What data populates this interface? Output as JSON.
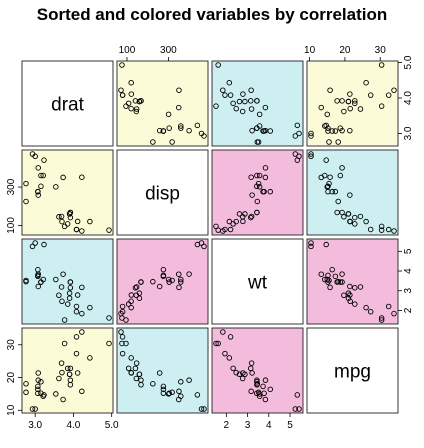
{
  "chart_data": {
    "type": "scatter",
    "title": "Sorted and colored variables by correlation",
    "variables": [
      "drat",
      "disp",
      "wt",
      "mpg"
    ],
    "colors": {
      "high_positive": "#f3bcdd",
      "moderate": "#cdeff1",
      "weak": "#fbfbd8",
      "diagonal": "#ffffff",
      "border": "#222222"
    },
    "panel_colors": [
      [
        "diagonal",
        "weak",
        "moderate",
        "weak"
      ],
      [
        "weak",
        "diagonal",
        "high_positive",
        "moderate"
      ],
      [
        "moderate",
        "high_positive",
        "diagonal",
        "high_positive"
      ],
      [
        "weak",
        "moderate",
        "high_positive",
        "diagonal"
      ]
    ],
    "ranges": {
      "drat": [
        2.76,
        4.93
      ],
      "disp": [
        71.1,
        472
      ],
      "wt": [
        1.513,
        5.424
      ],
      "mpg": [
        10.4,
        33.9
      ]
    },
    "ticks": {
      "drat": [
        3.0,
        4.0,
        5.0
      ],
      "disp": [
        100,
        300
      ],
      "wt": [
        2,
        3,
        4,
        5
      ],
      "mpg": [
        10,
        20,
        30
      ]
    },
    "tick_labels": {
      "drat": [
        "3.0",
        "4.0",
        "5.0"
      ],
      "disp": [
        "100",
        "300"
      ],
      "wt": [
        "2",
        "3",
        "4",
        "5"
      ],
      "mpg": [
        "10",
        "20",
        "30"
      ]
    },
    "axes_layout": {
      "top": [
        "disp",
        "mpg"
      ],
      "right": [
        "drat",
        "wt"
      ],
      "bottom": [
        "drat",
        "wt"
      ],
      "left": [
        "disp",
        "mpg"
      ]
    },
    "data": {
      "mpg": [
        21.0,
        21.0,
        22.8,
        21.4,
        18.7,
        18.1,
        14.3,
        24.4,
        22.8,
        19.2,
        17.8,
        16.4,
        17.3,
        15.2,
        10.4,
        10.4,
        14.7,
        32.4,
        30.4,
        33.9,
        21.5,
        15.5,
        15.2,
        13.3,
        19.2,
        27.3,
        26.0,
        30.4,
        15.8,
        19.7,
        15.0,
        21.4
      ],
      "disp": [
        160,
        160,
        108,
        258,
        360,
        225,
        360,
        146.7,
        140.8,
        167.6,
        167.6,
        275.8,
        275.8,
        275.8,
        472,
        460,
        440,
        78.7,
        75.7,
        71.1,
        120.1,
        318,
        304,
        350,
        400,
        79,
        120.3,
        95.1,
        351,
        145,
        301,
        121
      ],
      "drat": [
        3.9,
        3.9,
        3.85,
        3.08,
        3.15,
        2.76,
        3.21,
        3.69,
        3.92,
        3.92,
        3.92,
        3.07,
        3.07,
        3.07,
        2.93,
        3.0,
        3.23,
        4.08,
        4.93,
        4.22,
        3.7,
        2.76,
        3.15,
        3.73,
        3.08,
        4.08,
        4.43,
        3.77,
        4.22,
        3.62,
        3.54,
        4.11
      ],
      "wt": [
        2.62,
        2.875,
        2.32,
        3.215,
        3.44,
        3.46,
        3.57,
        3.19,
        3.15,
        3.44,
        3.44,
        4.07,
        3.73,
        3.78,
        5.25,
        5.424,
        5.345,
        2.2,
        1.615,
        1.835,
        2.465,
        3.52,
        3.435,
        3.84,
        3.845,
        1.935,
        2.14,
        1.513,
        3.17,
        2.77,
        3.57,
        2.78
      ]
    }
  }
}
